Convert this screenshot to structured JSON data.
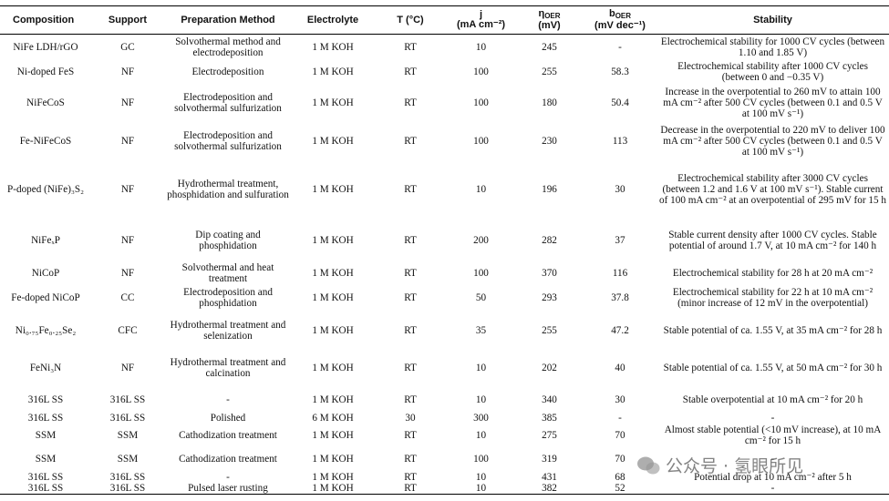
{
  "table": {
    "header": [
      {
        "text": "Composition"
      },
      {
        "text": "Support"
      },
      {
        "text": "Preparation Method"
      },
      {
        "text": "Electrolyte"
      },
      {
        "text": "T (°C)"
      },
      {
        "text": "j",
        "unit": "(mA cm⁻²)"
      },
      {
        "text": "η",
        "sub": "OER",
        "unit": "(mV)"
      },
      {
        "text": "b",
        "sub": "OER",
        "unit": "(mV dec⁻¹)"
      },
      {
        "text": "Stability"
      }
    ],
    "rows": [
      [
        "NiFe LDH/rGO",
        "GC",
        "Solvothermal method and electrodeposition",
        "1 M KOH",
        "RT",
        "10",
        "245",
        "-",
        "Electrochemical stability for 1000 CV cycles (between 1.10 and 1.85 V)"
      ],
      [
        "Ni-doped FeS",
        "NF",
        "Electrodeposition",
        "1 M KOH",
        "RT",
        "100",
        "255",
        "58.3",
        "Electrochemical stability after 1000 CV cycles (between 0 and −0.35 V)"
      ],
      [
        "NiFeCoS",
        "NF",
        "Electrodeposition and solvothermal sulfurization",
        "1 M KOH",
        "RT",
        "100",
        "180",
        "50.4",
        "Increase in the overpotential to 260 mV to attain 100 mA cm⁻² after 500 CV cycles (between 0.1 and 0.5 V at 100 mV s⁻¹)"
      ],
      [
        "Fe-NiFeCoS",
        "NF",
        "Electrodeposition and solvothermal sulfurization",
        "1 M KOH",
        "RT",
        "100",
        "230",
        "113",
        "Decrease in the overpotential to 220 mV to deliver 100 mA cm⁻² after 500 CV cycles (between 0.1 and 0.5 V at 100 mV s⁻¹)"
      ],
      [
        "P-doped (NiFe)₃S₂",
        "NF",
        "Hydrothermal treatment, phosphidation and sulfuration",
        "1 M KOH",
        "RT",
        "10",
        "196",
        "30",
        "Electrochemical stability after 3000 CV cycles (between 1.2 and 1.6 V at 100 mV s⁻¹). Stable current of 100 mA cm⁻² at an overpotential of 295 mV for 15 h"
      ],
      [
        "NiFeₓP",
        "NF",
        "Dip coating and phosphidation",
        "1 M KOH",
        "RT",
        "200",
        "282",
        "37",
        "Stable current density after 1000 CV cycles. Stable potential of around 1.7 V, at 10 mA cm⁻² for 140 h"
      ],
      [
        "NiCoP",
        "NF",
        "Solvothermal and heat treatment",
        "1 M KOH",
        "RT",
        "100",
        "370",
        "116",
        "Electrochemical stability for 28 h at 20 mA cm⁻²"
      ],
      [
        "Fe-doped NiCoP",
        "CC",
        "Electrodeposition and phosphidation",
        "1 M KOH",
        "RT",
        "50",
        "293",
        "37.8",
        "Electrochemical stability for 22 h at 10 mA cm⁻² (minor increase of 12 mV in the overpotential)"
      ],
      [
        "Ni₀.₇₅Fe₀.₂₅Se₂",
        "CFC",
        "Hydrothermal treatment and selenization",
        "1 M KOH",
        "RT",
        "35",
        "255",
        "47.2",
        "Stable potential of ca. 1.55 V, at 35 mA cm⁻² for 28 h"
      ],
      [
        "FeNi₃N",
        "NF",
        "Hydrothermal treatment and calcination",
        "1 M KOH",
        "RT",
        "10",
        "202",
        "40",
        "Stable potential of ca. 1.55 V, at 50 mA cm⁻² for 30 h"
      ],
      [
        "316L SS",
        "316L SS",
        "-",
        "1 M KOH",
        "RT",
        "10",
        "340",
        "30",
        "Stable overpotential at 10 mA cm⁻² for 20 h"
      ],
      [
        "316L SS",
        "316L SS",
        "Polished",
        "6 M KOH",
        "30",
        "300",
        "385",
        "-",
        "-"
      ],
      [
        "SSM",
        "SSM",
        "Cathodization treatment",
        "1 M KOH",
        "RT",
        "10",
        "275",
        "70",
        "Almost stable potential (<10 mV increase), at 10 mA cm⁻² for 15 h"
      ],
      [
        "SSM",
        "SSM",
        "Cathodization treatment",
        "1 M KOH",
        "RT",
        "100",
        "319",
        "70",
        "-"
      ],
      [
        "316L SS",
        "316L SS",
        "-",
        "1 M KOH",
        "RT",
        "10",
        "431",
        "68",
        "Potential drop at 10 mA cm⁻² after 5 h"
      ],
      [
        "316L SS",
        "316L SS",
        "Pulsed laser rusting",
        "1 M KOH",
        "RT",
        "10",
        "382",
        "52",
        "-"
      ]
    ]
  },
  "watermark": "公众号 · 氢眼所见"
}
